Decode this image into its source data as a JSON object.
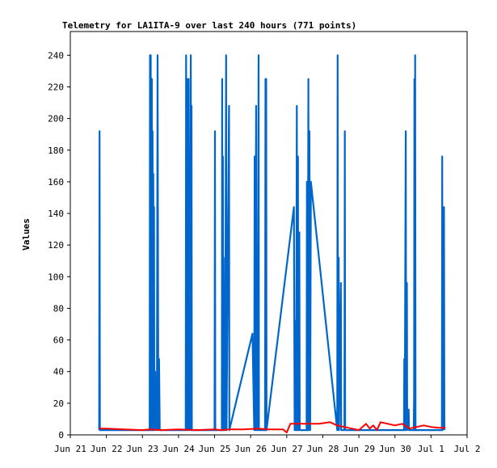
{
  "chart_data": {
    "type": "line",
    "title": "Telemetry for LA1ITA-9 over last 240 hours (771 points)",
    "xlabel": "",
    "ylabel": "Values",
    "x_range": [
      "Jun 21",
      "Jul 2"
    ],
    "ylim": [
      0,
      255
    ],
    "y_ticks": [
      0,
      20,
      40,
      60,
      80,
      100,
      120,
      140,
      160,
      180,
      200,
      220,
      240
    ],
    "x_ticks": [
      "Jun 21",
      "Jun 22",
      "Jun 23",
      "Jun 24",
      "Jun 25",
      "Jun 26",
      "Jun 27",
      "Jun 28",
      "Jun 29",
      "Jun 30",
      "Jul 1",
      "Jul 2"
    ],
    "grid": false,
    "legend": "none",
    "series": [
      {
        "color": "#0066cc",
        "points": [
          [
            0.8,
            3
          ],
          [
            0.81,
            192
          ],
          [
            0.82,
            3
          ],
          [
            2.2,
            3
          ],
          [
            2.21,
            240
          ],
          [
            2.22,
            3
          ],
          [
            2.23,
            240
          ],
          [
            2.24,
            48
          ],
          [
            2.25,
            3
          ],
          [
            2.26,
            225
          ],
          [
            2.27,
            3
          ],
          [
            2.28,
            192
          ],
          [
            2.29,
            3
          ],
          [
            2.3,
            165
          ],
          [
            2.31,
            3
          ],
          [
            2.32,
            144
          ],
          [
            2.33,
            3
          ],
          [
            2.35,
            40
          ],
          [
            2.38,
            3
          ],
          [
            2.4,
            3
          ],
          [
            2.42,
            240
          ],
          [
            2.44,
            3
          ],
          [
            2.46,
            48
          ],
          [
            2.48,
            3
          ],
          [
            3.2,
            3
          ],
          [
            3.21,
            240
          ],
          [
            3.22,
            3
          ],
          [
            3.24,
            225
          ],
          [
            3.25,
            3
          ],
          [
            3.28,
            225
          ],
          [
            3.29,
            3
          ],
          [
            3.3,
            48
          ],
          [
            3.31,
            3
          ],
          [
            3.34,
            240
          ],
          [
            3.35,
            3
          ],
          [
            3.36,
            208
          ],
          [
            3.37,
            3
          ],
          [
            4.0,
            3
          ],
          [
            4.01,
            192
          ],
          [
            4.02,
            3
          ],
          [
            4.2,
            3
          ],
          [
            4.21,
            225
          ],
          [
            4.22,
            3
          ],
          [
            4.23,
            176
          ],
          [
            4.24,
            3
          ],
          [
            4.25,
            112
          ],
          [
            4.26,
            3
          ],
          [
            4.28,
            64
          ],
          [
            4.29,
            3
          ],
          [
            4.32,
            240
          ],
          [
            4.33,
            3
          ],
          [
            4.4,
            208
          ],
          [
            4.41,
            3
          ],
          [
            5.05,
            64
          ],
          [
            5.1,
            3
          ],
          [
            5.11,
            176
          ],
          [
            5.12,
            3
          ],
          [
            5.15,
            208
          ],
          [
            5.16,
            3
          ],
          [
            5.18,
            112
          ],
          [
            5.19,
            3
          ],
          [
            5.22,
            240
          ],
          [
            5.23,
            3
          ],
          [
            5.25,
            3
          ],
          [
            5.4,
            3
          ],
          [
            5.41,
            225
          ],
          [
            5.42,
            3
          ],
          [
            5.43,
            225
          ],
          [
            5.44,
            3
          ],
          [
            6.2,
            144
          ],
          [
            6.22,
            3
          ],
          [
            6.25,
            72
          ],
          [
            6.26,
            3
          ],
          [
            6.28,
            208
          ],
          [
            6.29,
            3
          ],
          [
            6.31,
            176
          ],
          [
            6.32,
            3
          ],
          [
            6.35,
            128
          ],
          [
            6.36,
            3
          ],
          [
            6.55,
            3
          ],
          [
            6.56,
            160
          ],
          [
            6.58,
            3
          ],
          [
            6.6,
            225
          ],
          [
            6.61,
            3
          ],
          [
            6.63,
            192
          ],
          [
            6.65,
            3
          ],
          [
            6.67,
            160
          ],
          [
            7.4,
            3
          ],
          [
            7.41,
            240
          ],
          [
            7.42,
            3
          ],
          [
            7.44,
            112
          ],
          [
            7.45,
            3
          ],
          [
            7.5,
            96
          ],
          [
            7.51,
            3
          ],
          [
            7.6,
            3
          ],
          [
            7.61,
            192
          ],
          [
            7.62,
            3
          ],
          [
            9.25,
            3
          ],
          [
            9.26,
            48
          ],
          [
            9.27,
            3
          ],
          [
            9.3,
            192
          ],
          [
            9.31,
            3
          ],
          [
            9.33,
            96
          ],
          [
            9.34,
            3
          ],
          [
            9.38,
            16
          ],
          [
            9.39,
            3
          ],
          [
            9.52,
            3
          ],
          [
            9.53,
            24
          ],
          [
            9.54,
            225
          ],
          [
            9.55,
            3
          ],
          [
            9.56,
            240
          ],
          [
            9.57,
            3
          ],
          [
            10.3,
            3
          ],
          [
            10.31,
            176
          ],
          [
            10.32,
            3
          ],
          [
            10.36,
            144
          ],
          [
            10.37,
            3
          ]
        ]
      },
      {
        "color": "#ff0000",
        "points": [
          [
            0.8,
            4
          ],
          [
            1.0,
            4
          ],
          [
            1.5,
            3.5
          ],
          [
            2.0,
            3
          ],
          [
            2.2,
            3.5
          ],
          [
            2.5,
            3
          ],
          [
            3.0,
            3.5
          ],
          [
            3.5,
            3
          ],
          [
            4.0,
            3.5
          ],
          [
            4.2,
            3
          ],
          [
            4.4,
            3.5
          ],
          [
            4.8,
            3.5
          ],
          [
            5.2,
            4
          ],
          [
            5.5,
            3.5
          ],
          [
            5.9,
            3.5
          ],
          [
            6.0,
            1.5
          ],
          [
            6.1,
            7
          ],
          [
            6.5,
            7
          ],
          [
            6.9,
            7
          ],
          [
            7.2,
            8
          ],
          [
            7.4,
            6
          ],
          [
            7.8,
            4
          ],
          [
            8.0,
            3
          ],
          [
            8.2,
            7
          ],
          [
            8.3,
            4
          ],
          [
            8.4,
            6
          ],
          [
            8.5,
            3
          ],
          [
            8.6,
            8
          ],
          [
            9.0,
            6
          ],
          [
            9.2,
            7
          ],
          [
            9.4,
            4
          ],
          [
            9.6,
            5
          ],
          [
            9.8,
            6
          ],
          [
            10.0,
            5
          ],
          [
            10.2,
            4.5
          ],
          [
            10.4,
            4.5
          ]
        ]
      }
    ]
  }
}
